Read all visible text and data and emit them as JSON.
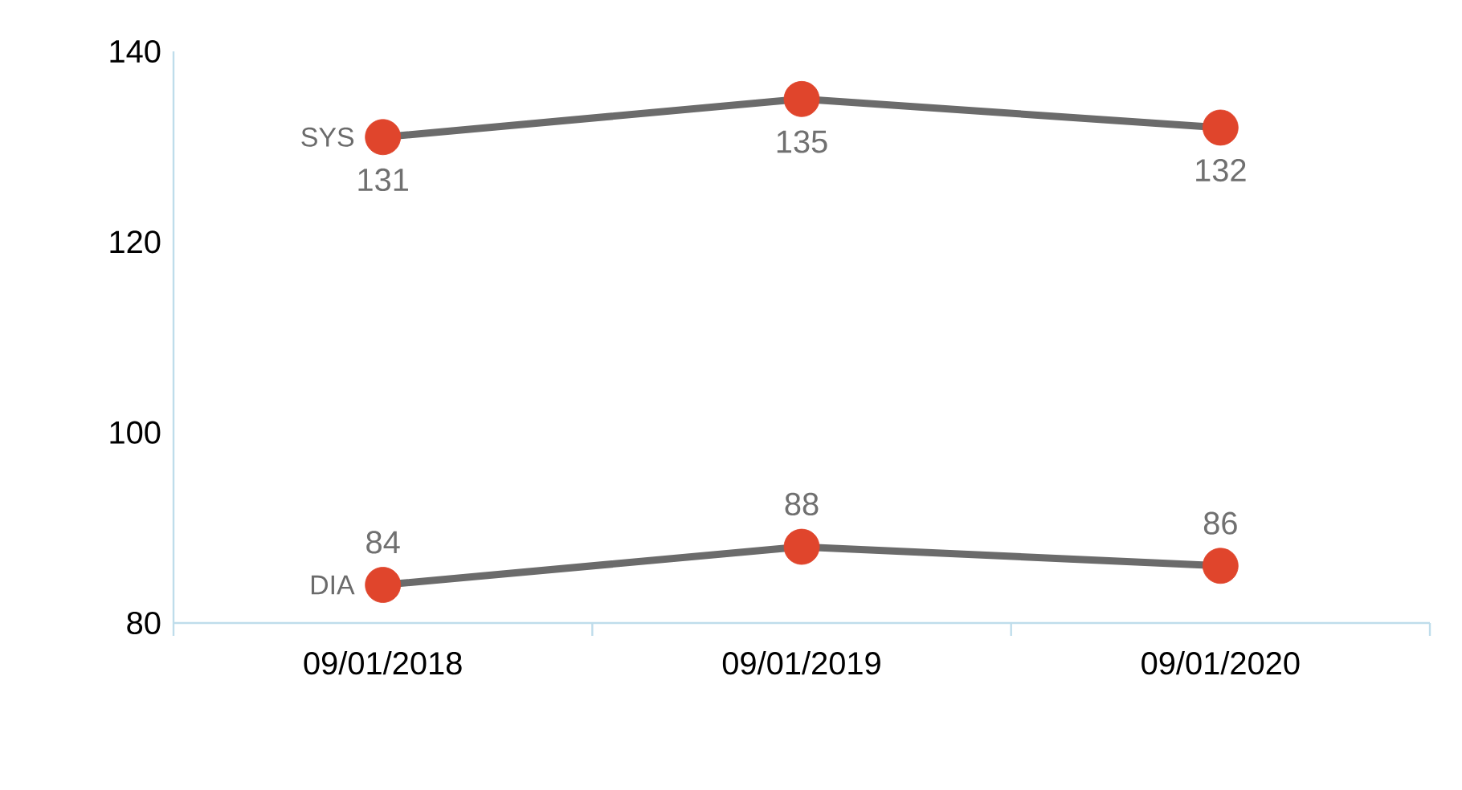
{
  "chart_data": {
    "type": "line",
    "categories": [
      "09/01/2018",
      "09/01/2019",
      "09/01/2020"
    ],
    "series": [
      {
        "name": "SYS",
        "color": "#6b6b6b",
        "colors": [
          "#e0452c",
          "#e0452c",
          "#e0452c"
        ],
        "values": [
          131,
          135,
          132
        ]
      },
      {
        "name": "DIA",
        "color": "#6b6b6b",
        "colors": [
          "#e0452c",
          "#e0452c",
          "#e0452c"
        ],
        "values": [
          84,
          88,
          86
        ]
      }
    ],
    "ylim": [
      80,
      140
    ],
    "yticks": [
      80,
      100,
      120,
      140
    ],
    "data_labels": true,
    "marker": "circle",
    "line_style": "solid",
    "grid": false,
    "legend": "left"
  }
}
